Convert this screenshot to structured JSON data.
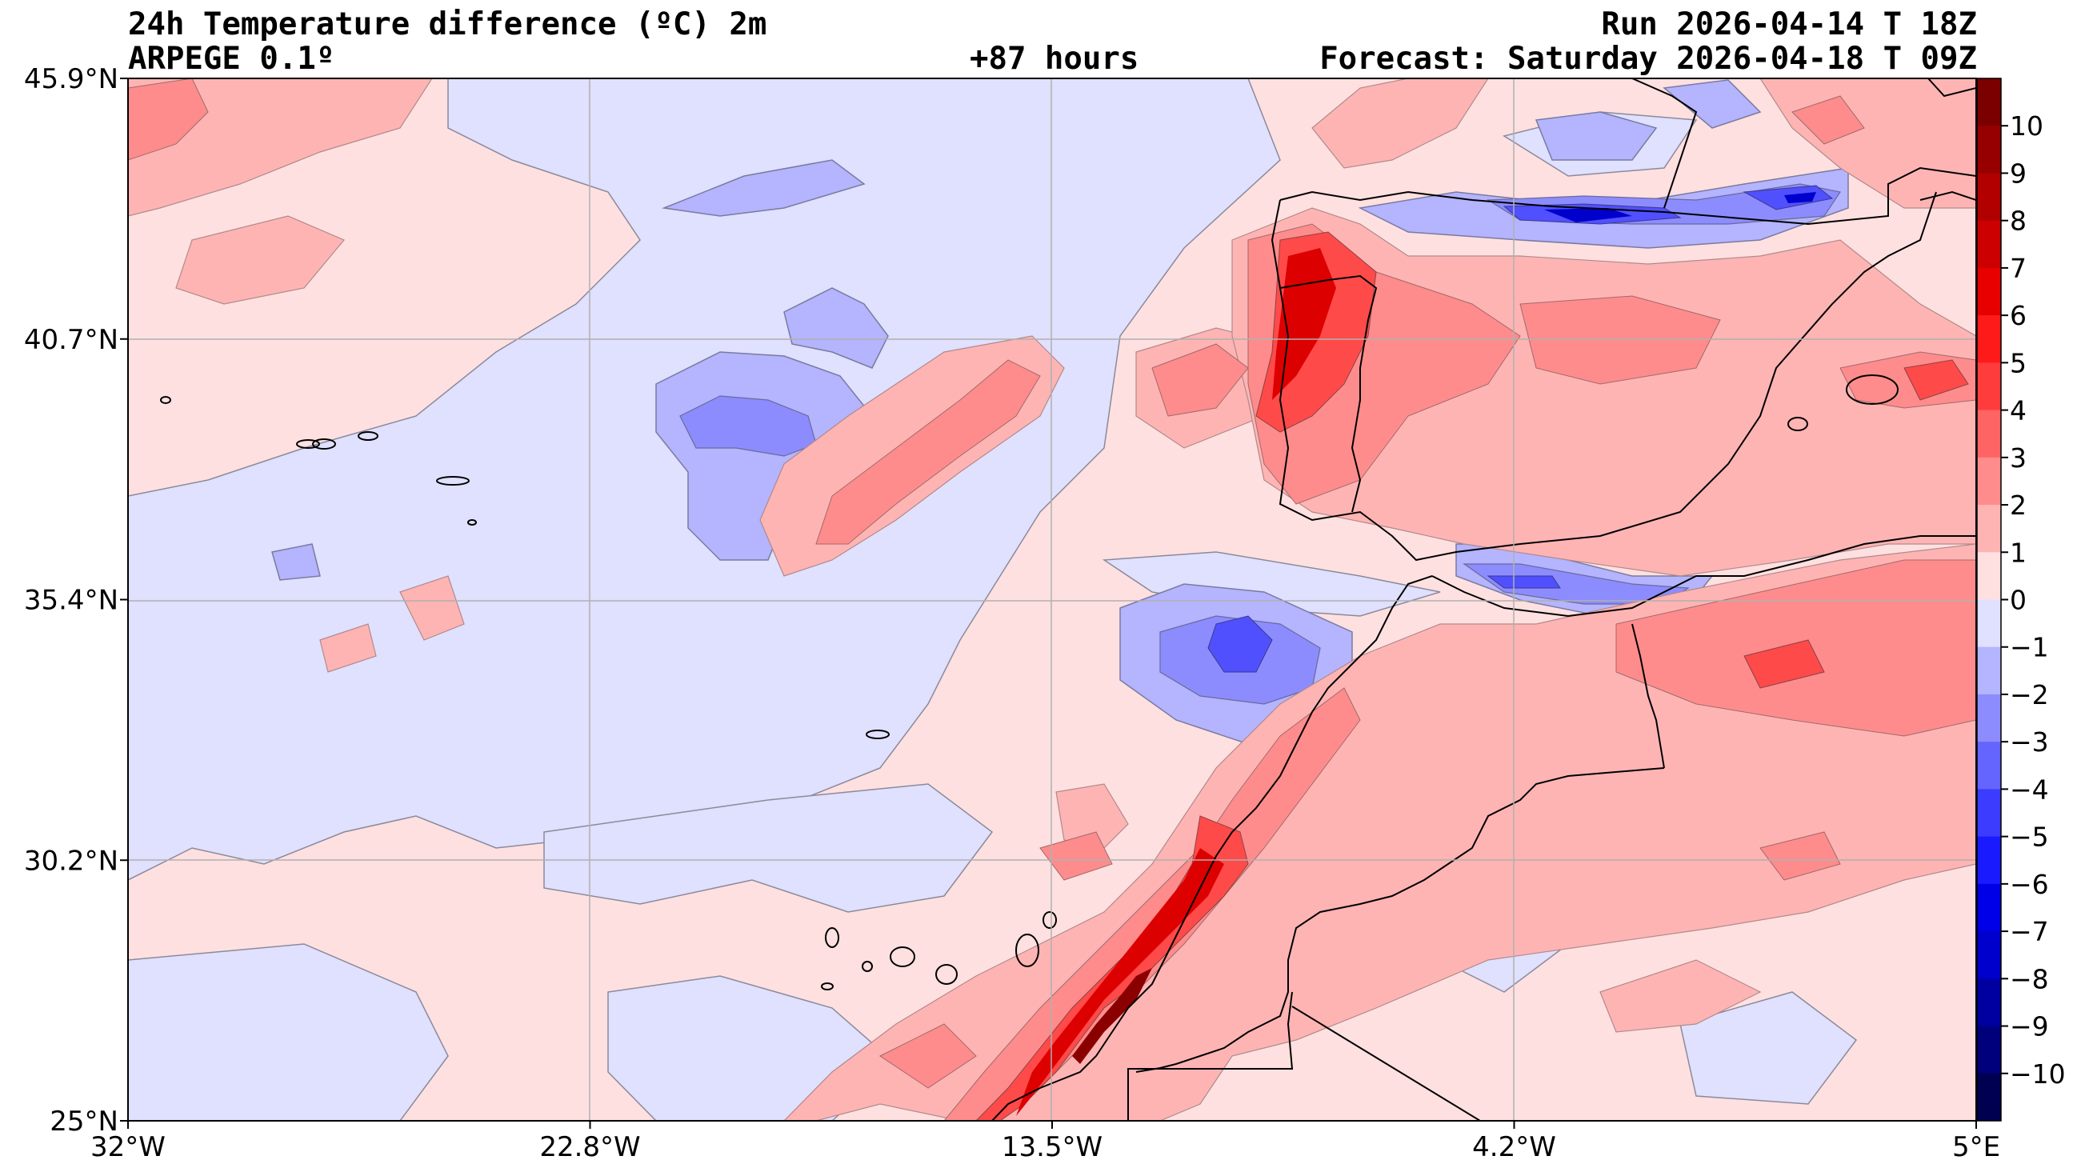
{
  "header": {
    "title": "24h Temperature difference (ºC) 2m",
    "model": "ARPEGE 0.1º",
    "lead": "+87 hours",
    "run": "Run 2026-04-14 T 18Z",
    "forecast": "Forecast: Saturday 2026-04-18 T 09Z"
  },
  "axes": {
    "x_ticks": [
      "32°W",
      "22.8°W",
      "13.5°W",
      "4.2°W",
      "5°E"
    ],
    "y_ticks": [
      "45.9°N",
      "40.7°N",
      "35.4°N",
      "30.2°N",
      "25°N"
    ],
    "lon_range": [
      -32,
      5
    ],
    "lat_range": [
      25,
      45.9
    ],
    "grid": true
  },
  "colorbar": {
    "ticks": [
      "10",
      "9",
      "8",
      "7",
      "6",
      "5",
      "4",
      "3",
      "2",
      "1",
      "0",
      "−1",
      "−2",
      "−3",
      "−4",
      "−5",
      "−6",
      "−7",
      "−8",
      "−9",
      "−10"
    ],
    "levels": [
      {
        "range": "10 to 11",
        "color": "#7a0000"
      },
      {
        "range": "9 to 10",
        "color": "#960000"
      },
      {
        "range": "8 to 9",
        "color": "#b00000"
      },
      {
        "range": "7 to 8",
        "color": "#cc0000"
      },
      {
        "range": "6 to 7",
        "color": "#e60000"
      },
      {
        "range": "5 to 6",
        "color": "#ff1a1a"
      },
      {
        "range": "4 to 5",
        "color": "#ff3c3c"
      },
      {
        "range": "3 to 4",
        "color": "#ff6464"
      },
      {
        "range": "2 to 3",
        "color": "#ff8c8c"
      },
      {
        "range": "1 to 2",
        "color": "#ffb4b4"
      },
      {
        "range": "0 to 1",
        "color": "#ffe0e0"
      },
      {
        "range": "-1 to 0",
        "color": "#e0e0ff"
      },
      {
        "range": "-2 to -1",
        "color": "#b4b4ff"
      },
      {
        "range": "-3 to -2",
        "color": "#8c8cff"
      },
      {
        "range": "-4 to -3",
        "color": "#6464ff"
      },
      {
        "range": "-5 to -4",
        "color": "#3c3cff"
      },
      {
        "range": "-6 to -5",
        "color": "#1a1aff"
      },
      {
        "range": "-7 to -6",
        "color": "#0000e6"
      },
      {
        "range": "-8 to -7",
        "color": "#0000cc"
      },
      {
        "range": "-9 to -8",
        "color": "#0000a0"
      },
      {
        "range": "-10 to -9",
        "color": "#00007a"
      },
      {
        "range": "-11 to -10",
        "color": "#000050"
      }
    ]
  }
}
